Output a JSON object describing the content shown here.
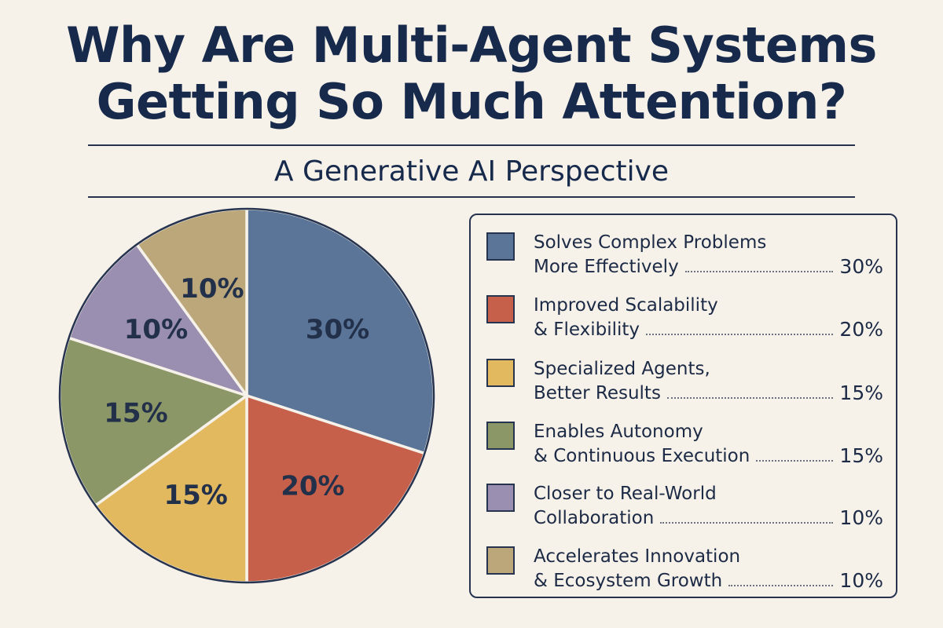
{
  "title": {
    "line1": "Why Are Multi-Agent Systems",
    "line2": "Getting So Much Attention?"
  },
  "subtitle": "A Generative AI Perspective",
  "colors": {
    "background": "#f6f2ea",
    "text": "#172a4c",
    "blue": "#5b7599",
    "red": "#c6604b",
    "yellow": "#e2b95e",
    "green": "#8c9767",
    "purple": "#9a8fb0",
    "tan": "#bca77b"
  },
  "chart_data": {
    "type": "pie",
    "title": "Why Are Multi-Agent Systems Getting So Much Attention?",
    "subtitle": "A Generative AI Perspective",
    "legend_position": "right",
    "slices": [
      {
        "line1": "Solves Complex Problems",
        "line2": "More Effectively",
        "value": 30,
        "label": "30%",
        "color": "#5b7599"
      },
      {
        "line1": "Improved Scalability",
        "line2": "& Flexibility",
        "value": 20,
        "label": "20%",
        "color": "#c6604b"
      },
      {
        "line1": "Specialized Agents,",
        "line2": "Better Results",
        "value": 15,
        "label": "15%",
        "color": "#e2b95e"
      },
      {
        "line1": "Enables Autonomy",
        "line2": "& Continuous Execution",
        "value": 15,
        "label": "15%",
        "color": "#8c9767"
      },
      {
        "line1": "Closer to Real-World",
        "line2": "Collaboration",
        "value": 10,
        "label": "10%",
        "color": "#9a8fb0"
      },
      {
        "line1": "Accelerates Innovation",
        "line2": "& Ecosystem Growth",
        "value": 10,
        "label": "10%",
        "color": "#bca77b"
      }
    ]
  }
}
